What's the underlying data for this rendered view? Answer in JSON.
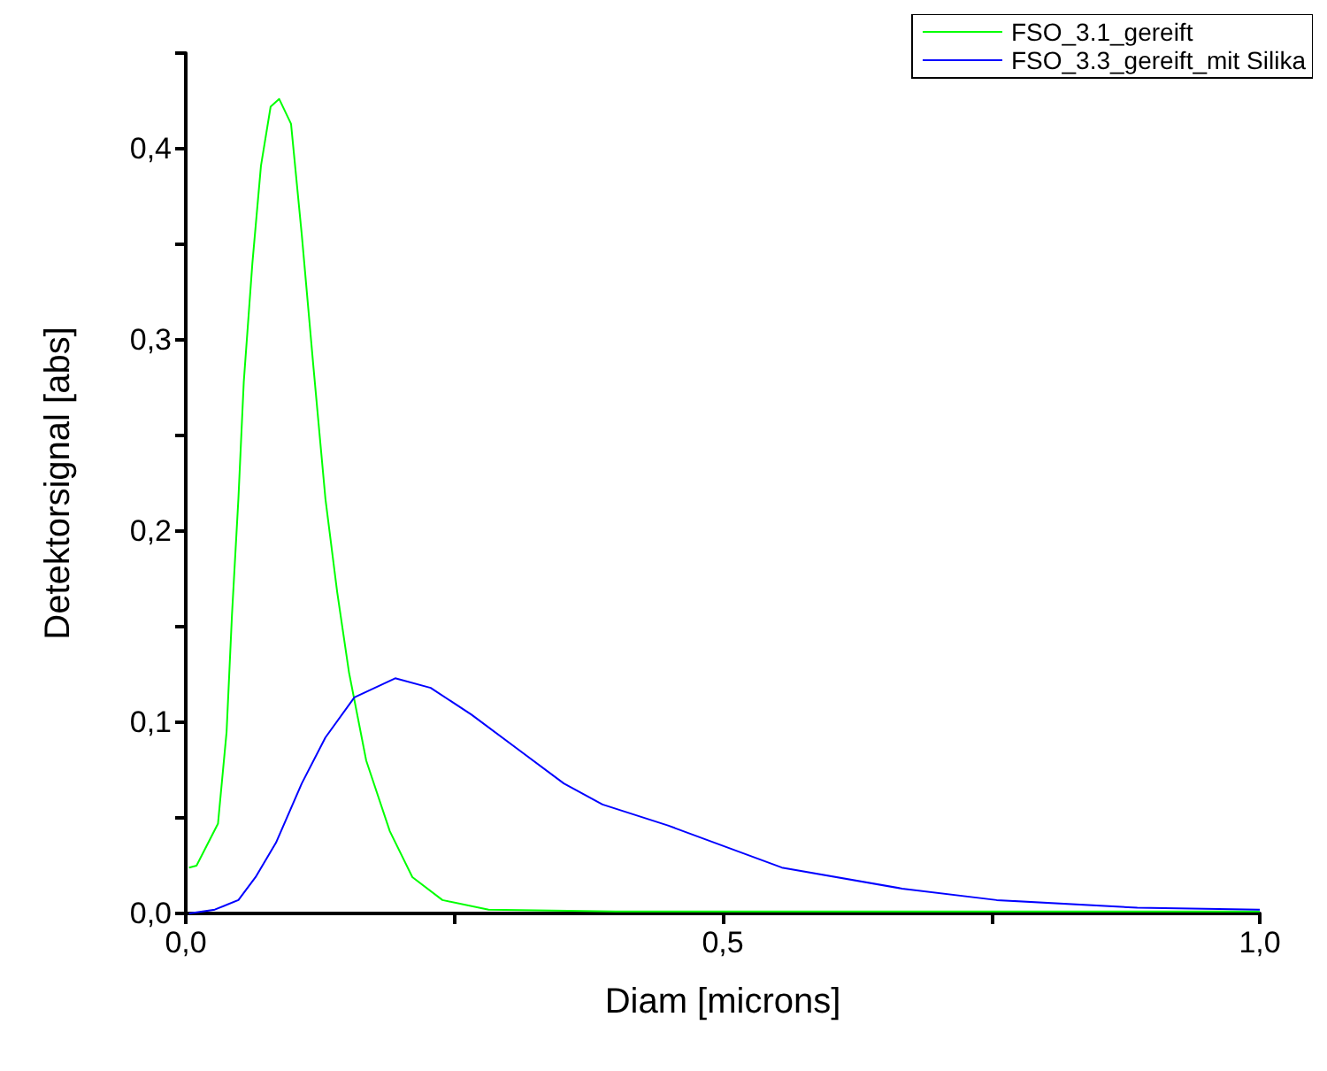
{
  "chart_data": {
    "type": "line",
    "xlabel": "Diam [microns]",
    "ylabel": "Detektorsignal [abs]",
    "xlim": [
      0,
      1
    ],
    "ylim": [
      0,
      0.45
    ],
    "xticks": [
      {
        "value": 0,
        "label": "0,0"
      },
      {
        "value": 0.25,
        "label": null
      },
      {
        "value": 0.5,
        "label": "0,5"
      },
      {
        "value": 0.75,
        "label": null
      },
      {
        "value": 1,
        "label": "1,0"
      }
    ],
    "yticks": [
      {
        "value": 0,
        "label": "0,0"
      },
      {
        "value": 0.05,
        "label": null
      },
      {
        "value": 0.1,
        "label": "0,1"
      },
      {
        "value": 0.15,
        "label": null
      },
      {
        "value": 0.2,
        "label": "0,2"
      },
      {
        "value": 0.25,
        "label": null
      },
      {
        "value": 0.3,
        "label": "0,3"
      },
      {
        "value": 0.35,
        "label": null
      },
      {
        "value": 0.4,
        "label": "0,4"
      },
      {
        "value": 0.45,
        "label": null
      }
    ],
    "grid": false,
    "legend": "top right",
    "marker": "none",
    "line_style": "solid",
    "series": [
      {
        "name": "FSO_3.1_gereift",
        "color": "#00ff00",
        "x": [
          0.003,
          0.01,
          0.03,
          0.038,
          0.043,
          0.049,
          0.054,
          0.062,
          0.07,
          0.079,
          0.087,
          0.098,
          0.108,
          0.119,
          0.13,
          0.141,
          0.152,
          0.168,
          0.19,
          0.211,
          0.239,
          0.282,
          0.4,
          0.6,
          0.8,
          1.0
        ],
        "values": [
          0.024,
          0.025,
          0.047,
          0.095,
          0.156,
          0.217,
          0.278,
          0.34,
          0.391,
          0.422,
          0.426,
          0.413,
          0.355,
          0.285,
          0.217,
          0.168,
          0.126,
          0.08,
          0.043,
          0.019,
          0.007,
          0.002,
          0.001,
          0.001,
          0.001,
          0.001
        ]
      },
      {
        "name": "FSO_3.3_gereift_mit Silika",
        "color": "#0000ff",
        "x": [
          0.003,
          0.027,
          0.049,
          0.065,
          0.084,
          0.108,
          0.13,
          0.157,
          0.195,
          0.228,
          0.266,
          0.309,
          0.352,
          0.388,
          0.449,
          0.555,
          0.667,
          0.755,
          0.886,
          1.0
        ],
        "values": [
          0.0,
          0.002,
          0.007,
          0.019,
          0.037,
          0.068,
          0.092,
          0.113,
          0.123,
          0.118,
          0.104,
          0.086,
          0.068,
          0.057,
          0.046,
          0.024,
          0.013,
          0.007,
          0.003,
          0.002
        ]
      }
    ]
  }
}
